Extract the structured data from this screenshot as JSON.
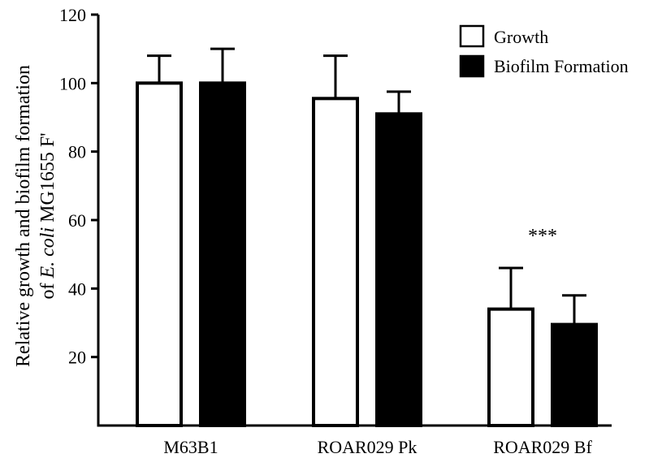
{
  "chart_data": {
    "type": "bar",
    "ylabel_line1": "Relative growth and biofilm formation",
    "ylabel_line2_prefix": "of ",
    "ylabel_line2_italic": "E. coli",
    "ylabel_line2_suffix": " MG1655 F'",
    "ylim": [
      0,
      120
    ],
    "yticks": [
      "20",
      "40",
      "60",
      "80",
      "100",
      "120"
    ],
    "categories": [
      "M63B1",
      "ROAR029 Pk",
      "ROAR029 Bf"
    ],
    "series": [
      {
        "name": "Growth",
        "fill": "#ffffff",
        "values": [
          100,
          95.5,
          34
        ],
        "errors": [
          8,
          12.5,
          12
        ]
      },
      {
        "name": "Biofilm Formation",
        "fill": "#000000",
        "values": [
          100,
          91,
          29.5
        ],
        "errors": [
          10,
          6.5,
          8.5
        ]
      }
    ],
    "annotations": [
      {
        "text": "***",
        "category_index": 2
      }
    ],
    "legend_position": "top-right",
    "grid": false
  }
}
